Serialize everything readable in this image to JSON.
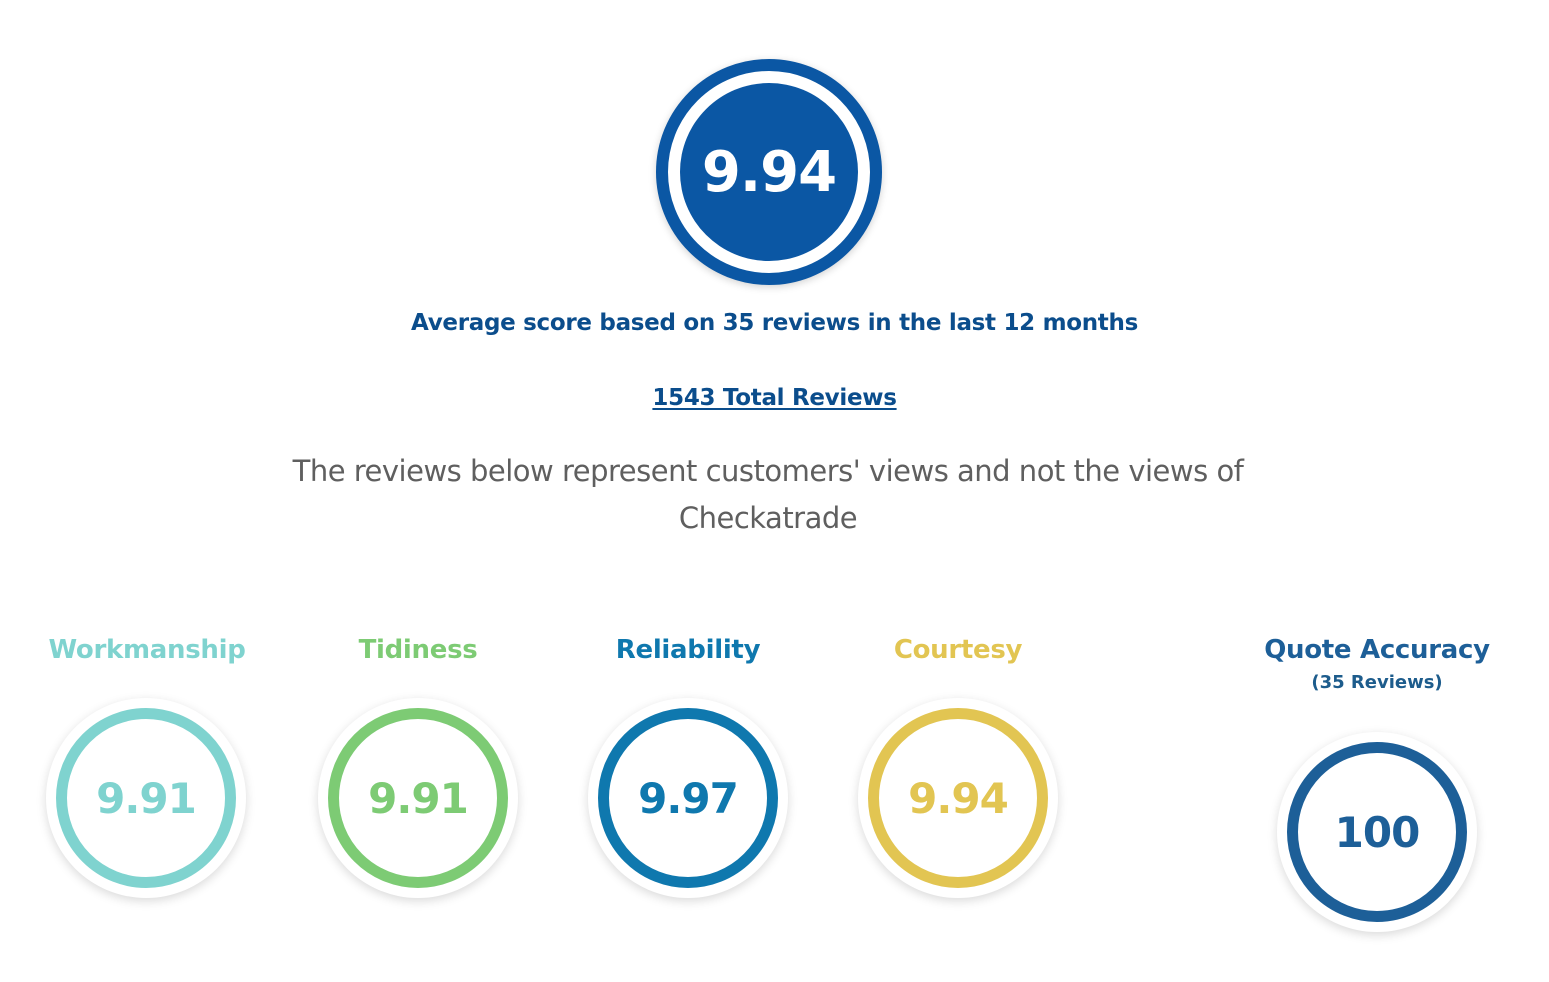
{
  "summary": {
    "average_score": "9.94",
    "average_text": "Average score based on 35 reviews in the last 12 months",
    "total_reviews_link": "1543 Total Reviews",
    "disclaimer": "The reviews below represent customers' views and not the views of Checkatrade"
  },
  "categories": [
    {
      "label": "Workmanship",
      "score": "9.91",
      "color": "#7fd3cf"
    },
    {
      "label": "Tidiness",
      "score": "9.91",
      "color": "#7dcb74"
    },
    {
      "label": "Reliability",
      "score": "9.97",
      "color": "#0f78ae"
    },
    {
      "label": "Courtesy",
      "score": "9.94",
      "color": "#e2c552"
    },
    {
      "label": "Quote Accuracy",
      "sublabel": "(35 Reviews)",
      "score": "100",
      "color": "#1d5f98"
    }
  ],
  "colors": {
    "primary": "#0b57a4",
    "heading_text": "#0b4d8c",
    "disclaimer_text": "#5f5f5f"
  }
}
